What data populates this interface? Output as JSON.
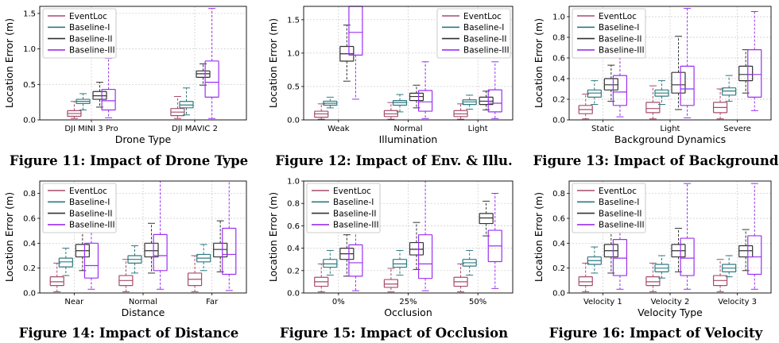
{
  "colors": {
    "eventloc": "#a64d6b",
    "baseline1": "#2f7a80",
    "baseline2": "#333333",
    "baseline3": "#9b30f0",
    "grid": "#c8c8c8"
  },
  "legend_labels": [
    "EventLoc",
    "Baseline-I",
    "Baseline-II",
    "Baseline-III"
  ],
  "chart_data": [
    {
      "type": "box",
      "caption": "Figure 11: Impact of Drone Type",
      "xlabel": "Drone Type",
      "ylabel": "Location Error (m)",
      "ylim": [
        0,
        1.6
      ],
      "yticks": [
        0.0,
        0.5,
        1.0,
        1.5
      ],
      "ytick_labels": [
        "0.0",
        "0.5",
        "1.0",
        "1.5"
      ],
      "categories": [
        "DJI MINI 3 Pro",
        "DJI MAVIC 2"
      ],
      "legend": "top-left",
      "grid": true,
      "series": [
        {
          "name": "EventLoc",
          "boxes": [
            [
              0.02,
              0.05,
              0.09,
              0.13,
              0.26
            ],
            [
              0.02,
              0.06,
              0.11,
              0.16,
              0.33
            ]
          ]
        },
        {
          "name": "Baseline-I",
          "boxes": [
            [
              0.14,
              0.23,
              0.26,
              0.29,
              0.37
            ],
            [
              0.07,
              0.17,
              0.21,
              0.26,
              0.45
            ]
          ]
        },
        {
          "name": "Baseline-II",
          "boxes": [
            [
              0.18,
              0.29,
              0.34,
              0.4,
              0.53
            ],
            [
              0.49,
              0.6,
              0.65,
              0.69,
              0.79
            ]
          ]
        },
        {
          "name": "Baseline-III",
          "boxes": [
            [
              0.03,
              0.14,
              0.27,
              0.43,
              0.87
            ],
            [
              0.02,
              0.32,
              0.53,
              0.83,
              1.57
            ]
          ]
        }
      ]
    },
    {
      "type": "box",
      "caption": "Figure 12: Impact of Env. & Illu.",
      "xlabel": "Illumination",
      "ylabel": "Location Error (m)",
      "ylim": [
        0,
        1.7
      ],
      "yticks": [
        0.0,
        0.5,
        1.0,
        1.5
      ],
      "ytick_labels": [
        "0.0",
        "0.5",
        "1.0",
        "1.5"
      ],
      "categories": [
        "Weak",
        "Normal",
        "Light"
      ],
      "legend": "top-right",
      "grid": true,
      "series": [
        {
          "name": "EventLoc",
          "boxes": [
            [
              0.01,
              0.04,
              0.09,
              0.13,
              0.24
            ],
            [
              0.01,
              0.05,
              0.09,
              0.14,
              0.26
            ],
            [
              0.01,
              0.05,
              0.09,
              0.14,
              0.24
            ]
          ]
        },
        {
          "name": "Baseline-I",
          "boxes": [
            [
              0.18,
              0.22,
              0.25,
              0.28,
              0.34
            ],
            [
              0.12,
              0.22,
              0.26,
              0.29,
              0.38
            ],
            [
              0.16,
              0.23,
              0.27,
              0.3,
              0.37
            ]
          ]
        },
        {
          "name": "Baseline-II",
          "boxes": [
            [
              0.58,
              0.88,
              0.99,
              1.1,
              1.42
            ],
            [
              0.18,
              0.29,
              0.35,
              0.4,
              0.52
            ],
            [
              0.15,
              0.23,
              0.28,
              0.34,
              0.43
            ]
          ]
        },
        {
          "name": "Baseline-III",
          "boxes": [
            [
              0.31,
              0.97,
              1.31,
              1.7,
              1.7
            ],
            [
              0.02,
              0.13,
              0.27,
              0.44,
              0.87
            ],
            [
              0.02,
              0.12,
              0.25,
              0.45,
              0.87
            ]
          ]
        }
      ]
    },
    {
      "type": "box",
      "caption": "Figure 13: Impact of Background",
      "xlabel": "Background Dynamics",
      "ylabel": "Location Error (m)",
      "ylim": [
        0,
        1.1
      ],
      "yticks": [
        0.0,
        0.2,
        0.4,
        0.6,
        0.8,
        1.0
      ],
      "ytick_labels": [
        "0.0",
        "0.2",
        "0.4",
        "0.6",
        "0.8",
        "1.0"
      ],
      "categories": [
        "Static",
        "Light",
        "Severe"
      ],
      "legend": "top-left",
      "grid": true,
      "series": [
        {
          "name": "EventLoc",
          "boxes": [
            [
              0.01,
              0.06,
              0.1,
              0.14,
              0.25
            ],
            [
              0.01,
              0.07,
              0.11,
              0.17,
              0.33
            ],
            [
              0.01,
              0.07,
              0.12,
              0.17,
              0.3
            ]
          ]
        },
        {
          "name": "Baseline-I",
          "boxes": [
            [
              0.15,
              0.22,
              0.26,
              0.29,
              0.38
            ],
            [
              0.15,
              0.23,
              0.26,
              0.29,
              0.38
            ],
            [
              0.18,
              0.24,
              0.28,
              0.31,
              0.43
            ]
          ]
        },
        {
          "name": "Baseline-II",
          "boxes": [
            [
              0.18,
              0.29,
              0.34,
              0.4,
              0.53
            ],
            [
              0.1,
              0.26,
              0.34,
              0.46,
              0.81
            ],
            [
              0.26,
              0.38,
              0.44,
              0.52,
              0.68
            ]
          ]
        },
        {
          "name": "Baseline-III",
          "boxes": [
            [
              0.03,
              0.14,
              0.27,
              0.43,
              0.87
            ],
            [
              0.02,
              0.14,
              0.3,
              0.52,
              1.08
            ],
            [
              0.09,
              0.22,
              0.44,
              0.68,
              1.05
            ]
          ]
        }
      ]
    },
    {
      "type": "box",
      "caption": "Figure 14: Impact of Distance",
      "xlabel": "Distance",
      "ylabel": "Location Error (m)",
      "ylim": [
        0,
        0.9
      ],
      "yticks": [
        0.0,
        0.2,
        0.4,
        0.6,
        0.8
      ],
      "ytick_labels": [
        "0.0",
        "0.2",
        "0.4",
        "0.6",
        "0.8"
      ],
      "categories": [
        "Near",
        "Normal",
        "Far"
      ],
      "legend": "top-left",
      "grid": true,
      "series": [
        {
          "name": "EventLoc",
          "boxes": [
            [
              0.01,
              0.06,
              0.09,
              0.13,
              0.24
            ],
            [
              0.01,
              0.06,
              0.1,
              0.14,
              0.27
            ],
            [
              0.01,
              0.06,
              0.11,
              0.16,
              0.3
            ]
          ]
        },
        {
          "name": "Baseline-I",
          "boxes": [
            [
              0.14,
              0.21,
              0.25,
              0.28,
              0.36
            ],
            [
              0.16,
              0.24,
              0.27,
              0.3,
              0.38
            ],
            [
              0.18,
              0.25,
              0.28,
              0.31,
              0.39
            ]
          ]
        },
        {
          "name": "Baseline-II",
          "boxes": [
            [
              0.18,
              0.29,
              0.34,
              0.39,
              0.52
            ],
            [
              0.16,
              0.29,
              0.34,
              0.4,
              0.56
            ],
            [
              0.17,
              0.29,
              0.35,
              0.4,
              0.58
            ]
          ]
        },
        {
          "name": "Baseline-III",
          "boxes": [
            [
              0.03,
              0.12,
              0.22,
              0.4,
              0.87
            ],
            [
              0.03,
              0.18,
              0.3,
              0.47,
              0.9
            ],
            [
              0.02,
              0.15,
              0.31,
              0.52,
              0.9
            ]
          ]
        }
      ]
    },
    {
      "type": "box",
      "caption": "Figure 15: Impact of Occlusion",
      "xlabel": "Occlusion",
      "ylabel": "Location Error (m)",
      "ylim": [
        0,
        1.0
      ],
      "yticks": [
        0.0,
        0.2,
        0.4,
        0.6,
        0.8,
        1.0
      ],
      "ytick_labels": [
        "0.0",
        "0.2",
        "0.4",
        "0.6",
        "0.8",
        "1.0"
      ],
      "categories": [
        "0%",
        "25%",
        "50%"
      ],
      "legend": "top-left",
      "grid": true,
      "series": [
        {
          "name": "EventLoc",
          "boxes": [
            [
              0.01,
              0.06,
              0.1,
              0.14,
              0.26
            ],
            [
              0.01,
              0.05,
              0.08,
              0.12,
              0.22
            ],
            [
              0.01,
              0.06,
              0.1,
              0.14,
              0.26
            ]
          ]
        },
        {
          "name": "Baseline-I",
          "boxes": [
            [
              0.16,
              0.23,
              0.26,
              0.3,
              0.38
            ],
            [
              0.16,
              0.23,
              0.26,
              0.3,
              0.38
            ],
            [
              0.16,
              0.24,
              0.27,
              0.3,
              0.38
            ]
          ]
        },
        {
          "name": "Baseline-II",
          "boxes": [
            [
              0.15,
              0.3,
              0.35,
              0.4,
              0.52
            ],
            [
              0.21,
              0.34,
              0.39,
              0.45,
              0.63
            ],
            [
              0.51,
              0.62,
              0.67,
              0.71,
              0.82
            ]
          ]
        },
        {
          "name": "Baseline-III",
          "boxes": [
            [
              0.02,
              0.15,
              0.27,
              0.43,
              0.87
            ],
            [
              0.02,
              0.13,
              0.26,
              0.52,
              1.0
            ],
            [
              0.04,
              0.28,
              0.42,
              0.56,
              0.89
            ]
          ]
        }
      ]
    },
    {
      "type": "box",
      "caption": "Figure 16: Impact of Velocity",
      "xlabel": "Velocity Type",
      "ylabel": "Location Error (m)",
      "ylim": [
        0,
        0.9
      ],
      "yticks": [
        0.0,
        0.2,
        0.4,
        0.6,
        0.8
      ],
      "ytick_labels": [
        "0.0",
        "0.2",
        "0.4",
        "0.6",
        "0.8"
      ],
      "categories": [
        "Velocity 1",
        "Velocity 2",
        "Velocity 3"
      ],
      "legend": "top-left",
      "grid": true,
      "series": [
        {
          "name": "EventLoc",
          "boxes": [
            [
              0.01,
              0.06,
              0.09,
              0.13,
              0.24
            ],
            [
              0.01,
              0.06,
              0.09,
              0.13,
              0.24
            ],
            [
              0.01,
              0.06,
              0.1,
              0.14,
              0.27
            ]
          ]
        },
        {
          "name": "Baseline-I",
          "boxes": [
            [
              0.16,
              0.23,
              0.26,
              0.29,
              0.37
            ],
            [
              0.12,
              0.17,
              0.2,
              0.23,
              0.3
            ],
            [
              0.13,
              0.17,
              0.2,
              0.23,
              0.3
            ]
          ]
        },
        {
          "name": "Baseline-II",
          "boxes": [
            [
              0.16,
              0.29,
              0.34,
              0.39,
              0.52
            ],
            [
              0.17,
              0.29,
              0.34,
              0.39,
              0.52
            ],
            [
              0.18,
              0.29,
              0.34,
              0.38,
              0.51
            ]
          ]
        },
        {
          "name": "Baseline-III",
          "boxes": [
            [
              0.03,
              0.14,
              0.28,
              0.43,
              0.87
            ],
            [
              0.03,
              0.14,
              0.28,
              0.44,
              0.88
            ],
            [
              0.03,
              0.15,
              0.29,
              0.46,
              0.88
            ]
          ]
        }
      ]
    }
  ]
}
